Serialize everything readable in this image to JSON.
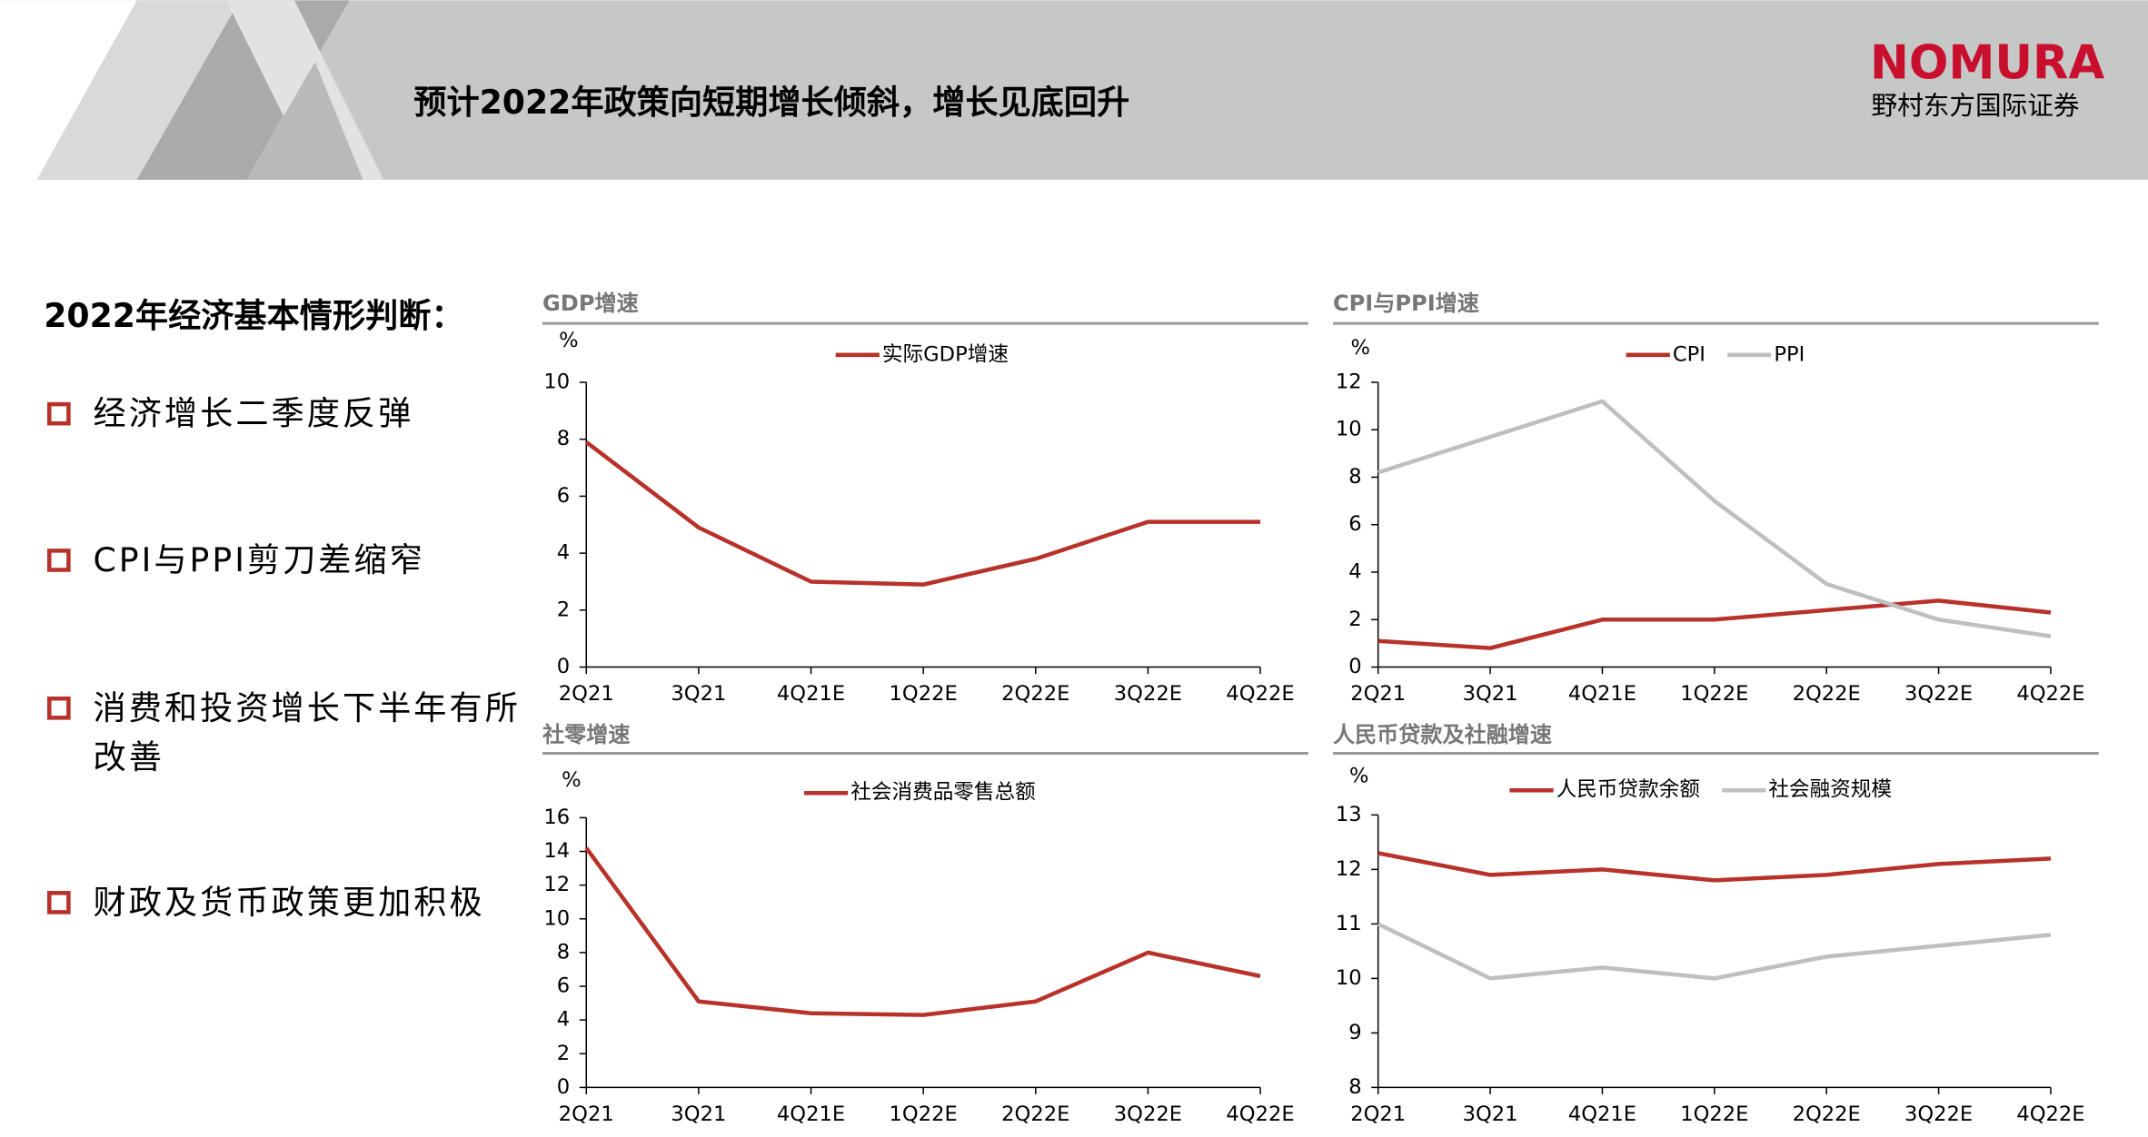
{
  "header": {
    "title": "预计2022年政策向短期增长倾斜，增长见底回升",
    "logo": "NOMURA",
    "logo_sub": "野村东方国际证券"
  },
  "left": {
    "heading": "2022年经济基本情形判断：",
    "bullets": [
      "经济增长二季度反弹",
      "CPI与PPI剪刀差缩窄",
      "消费和投资增长下半年有所改善",
      "财政及货币政策更加积极"
    ]
  },
  "chart_data": [
    {
      "type": "line",
      "title": "GDP增速",
      "ylabel": "%",
      "categories": [
        "2Q21",
        "3Q21",
        "4Q21E",
        "1Q22E",
        "2Q22E",
        "3Q22E",
        "4Q22E"
      ],
      "series": [
        {
          "name": "实际GDP增速",
          "color": "#b8322a",
          "values": [
            7.9,
            4.9,
            3.0,
            2.9,
            3.8,
            5.1,
            5.1
          ]
        }
      ],
      "ylim": [
        0,
        10
      ],
      "yticks": [
        0,
        2,
        4,
        6,
        8,
        10
      ]
    },
    {
      "type": "line",
      "title": "CPI与PPI增速",
      "ylabel": "%",
      "categories": [
        "2Q21",
        "3Q21",
        "4Q21E",
        "1Q22E",
        "2Q22E",
        "3Q22E",
        "4Q22E"
      ],
      "series": [
        {
          "name": "CPI",
          "color": "#b8322a",
          "values": [
            1.1,
            0.8,
            2.0,
            2.0,
            2.4,
            2.8,
            2.3
          ]
        },
        {
          "name": "PPI",
          "color": "#bfbfbf",
          "values": [
            8.2,
            9.7,
            11.2,
            7.0,
            3.5,
            2.0,
            1.3
          ]
        }
      ],
      "ylim": [
        0,
        12
      ],
      "yticks": [
        0,
        2,
        4,
        6,
        8,
        10,
        12
      ]
    },
    {
      "type": "line",
      "title": "社零增速",
      "ylabel": "%",
      "categories": [
        "2Q21",
        "3Q21",
        "4Q21E",
        "1Q22E",
        "2Q22E",
        "3Q22E",
        "4Q22E"
      ],
      "series": [
        {
          "name": "社会消费品零售总额",
          "color": "#b8322a",
          "values": [
            14.2,
            5.1,
            4.4,
            4.3,
            5.1,
            8.0,
            6.6
          ]
        }
      ],
      "ylim": [
        0,
        16
      ],
      "yticks": [
        0,
        2,
        4,
        6,
        8,
        10,
        12,
        14,
        16
      ]
    },
    {
      "type": "line",
      "title": "人民币贷款及社融增速",
      "ylabel": "%",
      "categories": [
        "2Q21",
        "3Q21",
        "4Q21E",
        "1Q22E",
        "2Q22E",
        "3Q22E",
        "4Q22E"
      ],
      "series": [
        {
          "name": "人民币贷款余额",
          "color": "#b8322a",
          "values": [
            12.3,
            11.9,
            12.0,
            11.8,
            11.9,
            12.1,
            12.2
          ]
        },
        {
          "name": "社会融资规模",
          "color": "#bfbfbf",
          "values": [
            11.0,
            10.0,
            10.2,
            10.0,
            10.4,
            10.6,
            10.8
          ]
        }
      ],
      "ylim": [
        8,
        13
      ],
      "yticks": [
        8,
        9,
        10,
        11,
        12,
        13
      ]
    }
  ]
}
